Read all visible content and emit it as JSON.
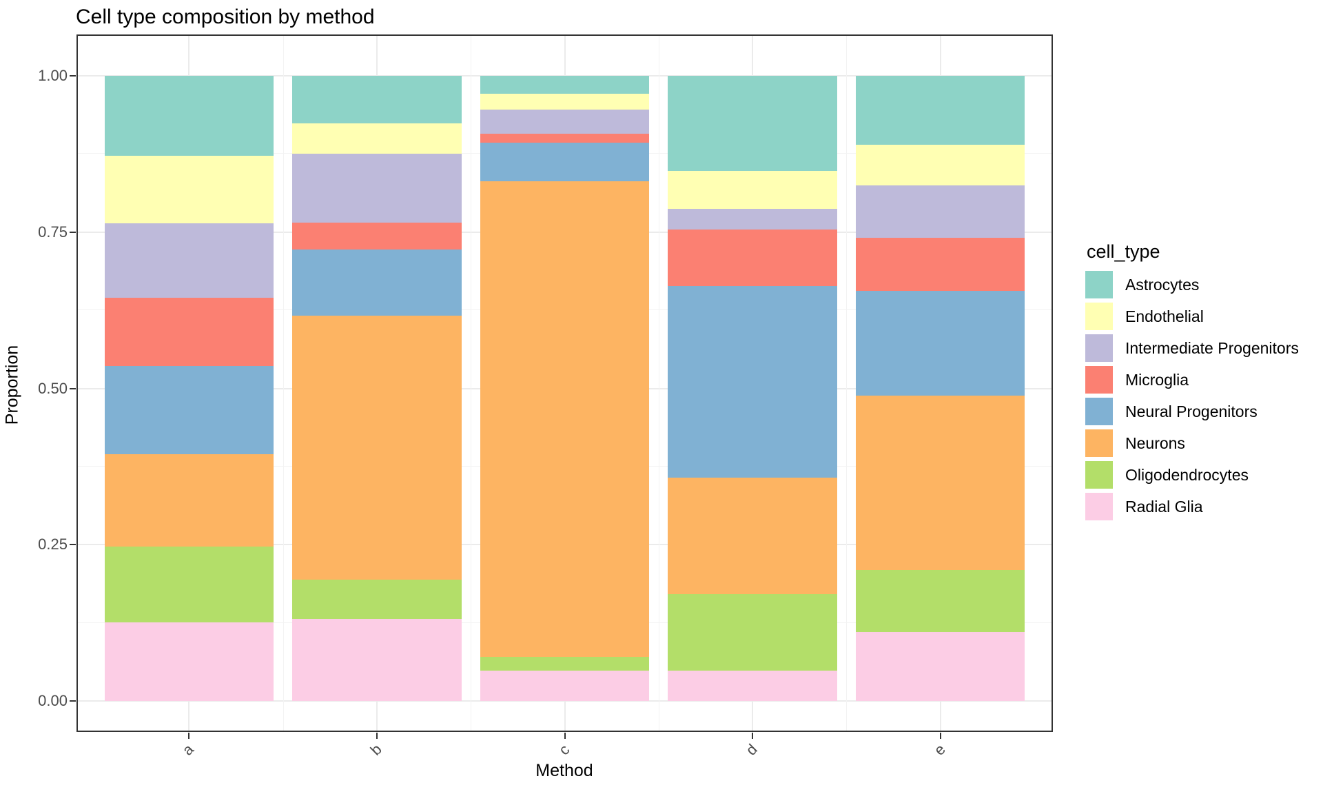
{
  "figure": {
    "title": "Cell type composition by method",
    "background": "#FFFFFF"
  },
  "axes": {
    "x": {
      "title": "Method",
      "tick_labels": [
        "a",
        "b",
        "c",
        "d",
        "e"
      ]
    },
    "y": {
      "title": "Proportion",
      "ticks": [
        {
          "value": 0.0,
          "label": "0.00"
        },
        {
          "value": 0.25,
          "label": "0.25"
        },
        {
          "value": 0.5,
          "label": "0.50"
        },
        {
          "value": 0.75,
          "label": "0.75"
        },
        {
          "value": 1.0,
          "label": "1.00"
        }
      ],
      "minor_gridlines": [
        0.125,
        0.375,
        0.625,
        0.875
      ]
    }
  },
  "legend": {
    "title": "cell_type",
    "position": "right"
  },
  "style": {
    "major_grid_color": "#EBEBEB",
    "minor_grid_color": "#F3F3F3",
    "panel_border_color": "#333333",
    "tick_color": "#333333",
    "tick_label_color": "#4D4D4D"
  },
  "chart_data": {
    "type": "bar",
    "stacked": true,
    "orientation": "vertical",
    "title": "Cell type composition by method",
    "xlabel": "Method",
    "ylabel": "Proportion",
    "ylim": [
      0,
      1
    ],
    "grid": true,
    "legend_position": "right",
    "categories": [
      "a",
      "b",
      "c",
      "d",
      "e"
    ],
    "series": [
      {
        "name": "Astrocytes",
        "color": "#8DD3C7",
        "values": [
          0.128,
          0.076,
          0.029,
          0.152,
          0.11
        ]
      },
      {
        "name": "Endothelial",
        "color": "#FFFFB3",
        "values": [
          0.108,
          0.049,
          0.025,
          0.061,
          0.065
        ]
      },
      {
        "name": "Intermediate Progenitors",
        "color": "#BEBADA",
        "values": [
          0.119,
          0.11,
          0.039,
          0.033,
          0.084
        ]
      },
      {
        "name": "Microglia",
        "color": "#FB8072",
        "values": [
          0.109,
          0.043,
          0.014,
          0.09,
          0.085
        ]
      },
      {
        "name": "Neural Progenitors",
        "color": "#80B1D3",
        "values": [
          0.141,
          0.106,
          0.062,
          0.307,
          0.167
        ]
      },
      {
        "name": "Neurons",
        "color": "#FDB462",
        "values": [
          0.148,
          0.422,
          0.76,
          0.186,
          0.28
        ]
      },
      {
        "name": "Oligodendrocytes",
        "color": "#B3DE69",
        "values": [
          0.121,
          0.063,
          0.022,
          0.122,
          0.099
        ]
      },
      {
        "name": "Radial Glia",
        "color": "#FCCDE5",
        "values": [
          0.126,
          0.131,
          0.049,
          0.049,
          0.11
        ]
      }
    ],
    "stack_order_bottom_to_top": [
      "Radial Glia",
      "Oligodendrocytes",
      "Neurons",
      "Neural Progenitors",
      "Microglia",
      "Intermediate Progenitors",
      "Endothelial",
      "Astrocytes"
    ]
  }
}
